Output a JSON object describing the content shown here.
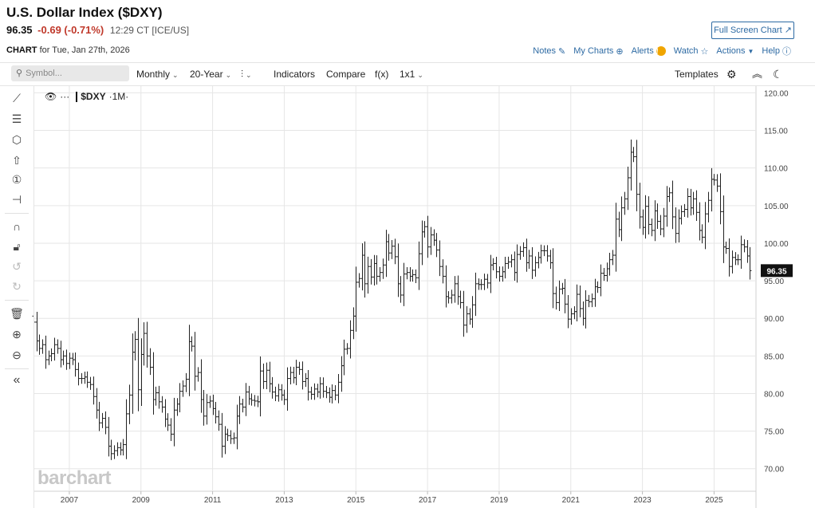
{
  "header": {
    "title": "U.S. Dollar Index ($DXY)",
    "last": "96.35",
    "change": "-0.69 (-0.71%)",
    "time": "12:29 CT [ICE/US]",
    "fullscreen_label": "Full Screen Chart ↗",
    "chart_word": "CHART",
    "chart_date": "for Tue, Jan 27th, 2026"
  },
  "links": {
    "notes": "Notes",
    "mycharts": "My Charts",
    "alerts": "Alerts",
    "watch": "Watch",
    "actions": "Actions",
    "help": "Help"
  },
  "toolbar": {
    "search_placeholder": "Symbol...",
    "period": "Monthly",
    "range": "20-Year",
    "indicators": "Indicators",
    "compare": "Compare",
    "fx": "f(x)",
    "layout": "1x1",
    "templates": "Templates"
  },
  "legend": {
    "symbol": "$DXY",
    "interval": "·1M·"
  },
  "watermark": "barchart",
  "colors": {
    "accent": "#2d6aa3",
    "down": "#c0392b",
    "alert": "#f0a500",
    "bar": "#222222"
  },
  "chart_data": {
    "type": "ohlc",
    "title": "U.S. Dollar Index ($DXY)",
    "interval": "Monthly",
    "ylim": [
      67,
      121
    ],
    "y_ticks": [
      "120.00",
      "115.00",
      "110.00",
      "105.00",
      "100.00",
      "95.00",
      "90.00",
      "85.00",
      "80.00",
      "75.00",
      "70.00"
    ],
    "x_ticks": [
      "2007",
      "2009",
      "2011",
      "2013",
      "2015",
      "2017",
      "2019",
      "2021",
      "2023",
      "2025"
    ],
    "x_tick_years": [
      2007,
      2009,
      2011,
      2013,
      2015,
      2017,
      2019,
      2021,
      2023,
      2025
    ],
    "x_range": [
      2006.0,
      2026.17
    ],
    "last_price": 96.35,
    "series": [
      {
        "name": "$DXY",
        "start": 2006.0,
        "step_months": 1,
        "close": [
          89.5,
          87.0,
          86.0,
          86.5,
          84.5,
          85.0,
          85.3,
          86.5,
          86.0,
          84.5,
          85.0,
          84.0,
          84.7,
          84.5,
          83.2,
          82.0,
          82.0,
          82.2,
          81.5,
          81.2,
          79.6,
          77.8,
          76.1,
          76.7,
          75.5,
          73.0,
          72.0,
          72.4,
          72.8,
          72.5,
          73.2,
          77.3,
          79.8,
          85.5,
          87.2,
          80.5,
          85.2,
          88.0,
          85.0,
          83.5,
          79.2,
          80.1,
          78.9,
          78.2,
          76.6,
          75.8,
          74.6,
          77.8,
          78.6,
          80.3,
          81.0,
          81.9,
          86.9,
          86.3,
          82.3,
          82.8,
          79.2,
          77.0,
          78.8,
          79.0,
          78.0,
          76.9,
          75.9,
          73.0,
          74.6,
          74.4,
          74.0,
          74.1,
          77.0,
          78.6,
          78.2,
          80.2,
          79.3,
          79.1,
          79.0,
          78.9,
          83.0,
          81.6,
          83.1,
          81.3,
          80.2,
          79.7,
          80.5,
          79.8,
          79.2,
          82.0,
          82.8,
          82.1,
          83.5,
          83.2,
          81.6,
          82.0,
          80.2,
          79.9,
          80.6,
          80.2,
          81.3,
          80.3,
          80.1,
          79.5,
          80.4,
          79.8,
          81.5,
          83.7,
          85.9,
          86.0,
          88.4,
          90.3,
          94.8,
          95.3,
          98.4,
          94.6,
          96.9,
          95.5,
          97.3,
          95.6,
          96.1,
          97.1,
          100.2,
          98.7,
          99.6,
          98.2,
          94.6,
          93.1,
          95.9,
          96.1,
          95.6,
          95.8,
          95.4,
          98.6,
          101.5,
          102.2,
          99.5,
          101.1,
          100.4,
          99.1,
          96.9,
          95.6,
          92.9,
          92.7,
          93.1,
          94.6,
          92.9,
          92.1,
          89.1,
          90.6,
          89.9,
          91.8,
          94.6,
          94.5,
          94.5,
          95.2,
          94.7,
          97.1,
          97.3,
          96.2,
          95.6,
          96.2,
          97.3,
          97.5,
          97.8,
          96.1,
          98.5,
          98.9,
          99.4,
          97.4,
          98.3,
          96.4,
          97.4,
          98.1,
          99.0,
          99.0,
          98.3,
          97.4,
          93.3,
          92.1,
          93.9,
          94.0,
          91.9,
          89.9,
          90.6,
          90.9,
          93.2,
          91.3,
          90.0,
          92.4,
          92.2,
          92.6,
          94.2,
          94.1,
          96.0,
          95.7,
          96.6,
          97.8,
          98.4,
          103.2,
          101.8,
          104.7,
          105.9,
          108.7,
          112.1,
          111.5,
          106.5,
          103.5,
          102.1,
          104.9,
          102.5,
          101.7,
          104.3,
          102.9,
          101.9,
          103.6,
          106.2,
          106.7,
          103.5,
          101.3,
          103.3,
          104.2,
          104.5,
          106.2,
          104.7,
          105.9,
          104.1,
          101.7,
          100.8,
          103.9,
          105.7,
          108.5,
          108.4,
          107.6,
          104.2,
          99.5,
          99.3,
          96.9,
          98.1,
          97.8,
          97.8,
          99.8,
          99.5,
          98.3,
          96.35
        ]
      }
    ]
  }
}
